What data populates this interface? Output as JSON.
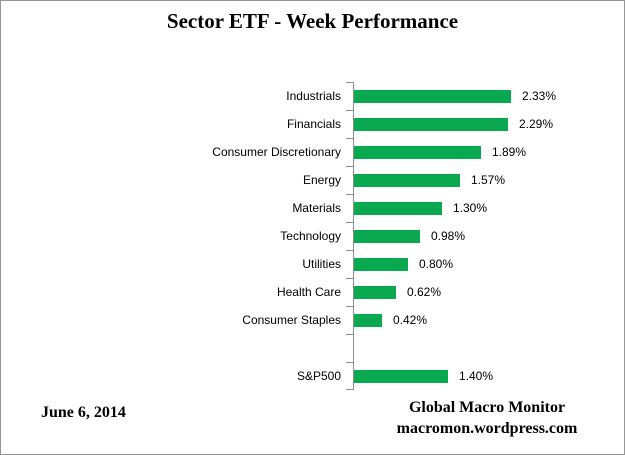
{
  "title": "Sector ETF - Week Performance",
  "footer": {
    "date": "June 6, 2014",
    "credit_line1": "Global Macro Monitor",
    "credit_line2": "macromon.wordpress.com"
  },
  "chart_data": {
    "type": "bar",
    "orientation": "horizontal",
    "title": "Sector ETF - Week Performance",
    "categories": [
      "Industrials",
      "Financials",
      "Consumer Discretionary",
      "Energy",
      "Materials",
      "Technology",
      "Utilities",
      "Health Care",
      "Consumer Staples",
      "",
      "S&P500"
    ],
    "values": [
      2.33,
      2.29,
      1.89,
      1.57,
      1.3,
      0.98,
      0.8,
      0.62,
      0.42,
      null,
      1.4
    ],
    "data_labels": [
      "2.33%",
      "2.29%",
      "1.89%",
      "1.57%",
      "1.30%",
      "0.98%",
      "0.80%",
      "0.62%",
      "0.42%",
      "",
      "1.40%"
    ],
    "xlabel": "",
    "ylabel": "",
    "xlim": [
      0,
      2.6
    ],
    "grid": false,
    "legend": false,
    "bar_color": "#0aa84f",
    "axis_color": "#8e8e8e"
  }
}
